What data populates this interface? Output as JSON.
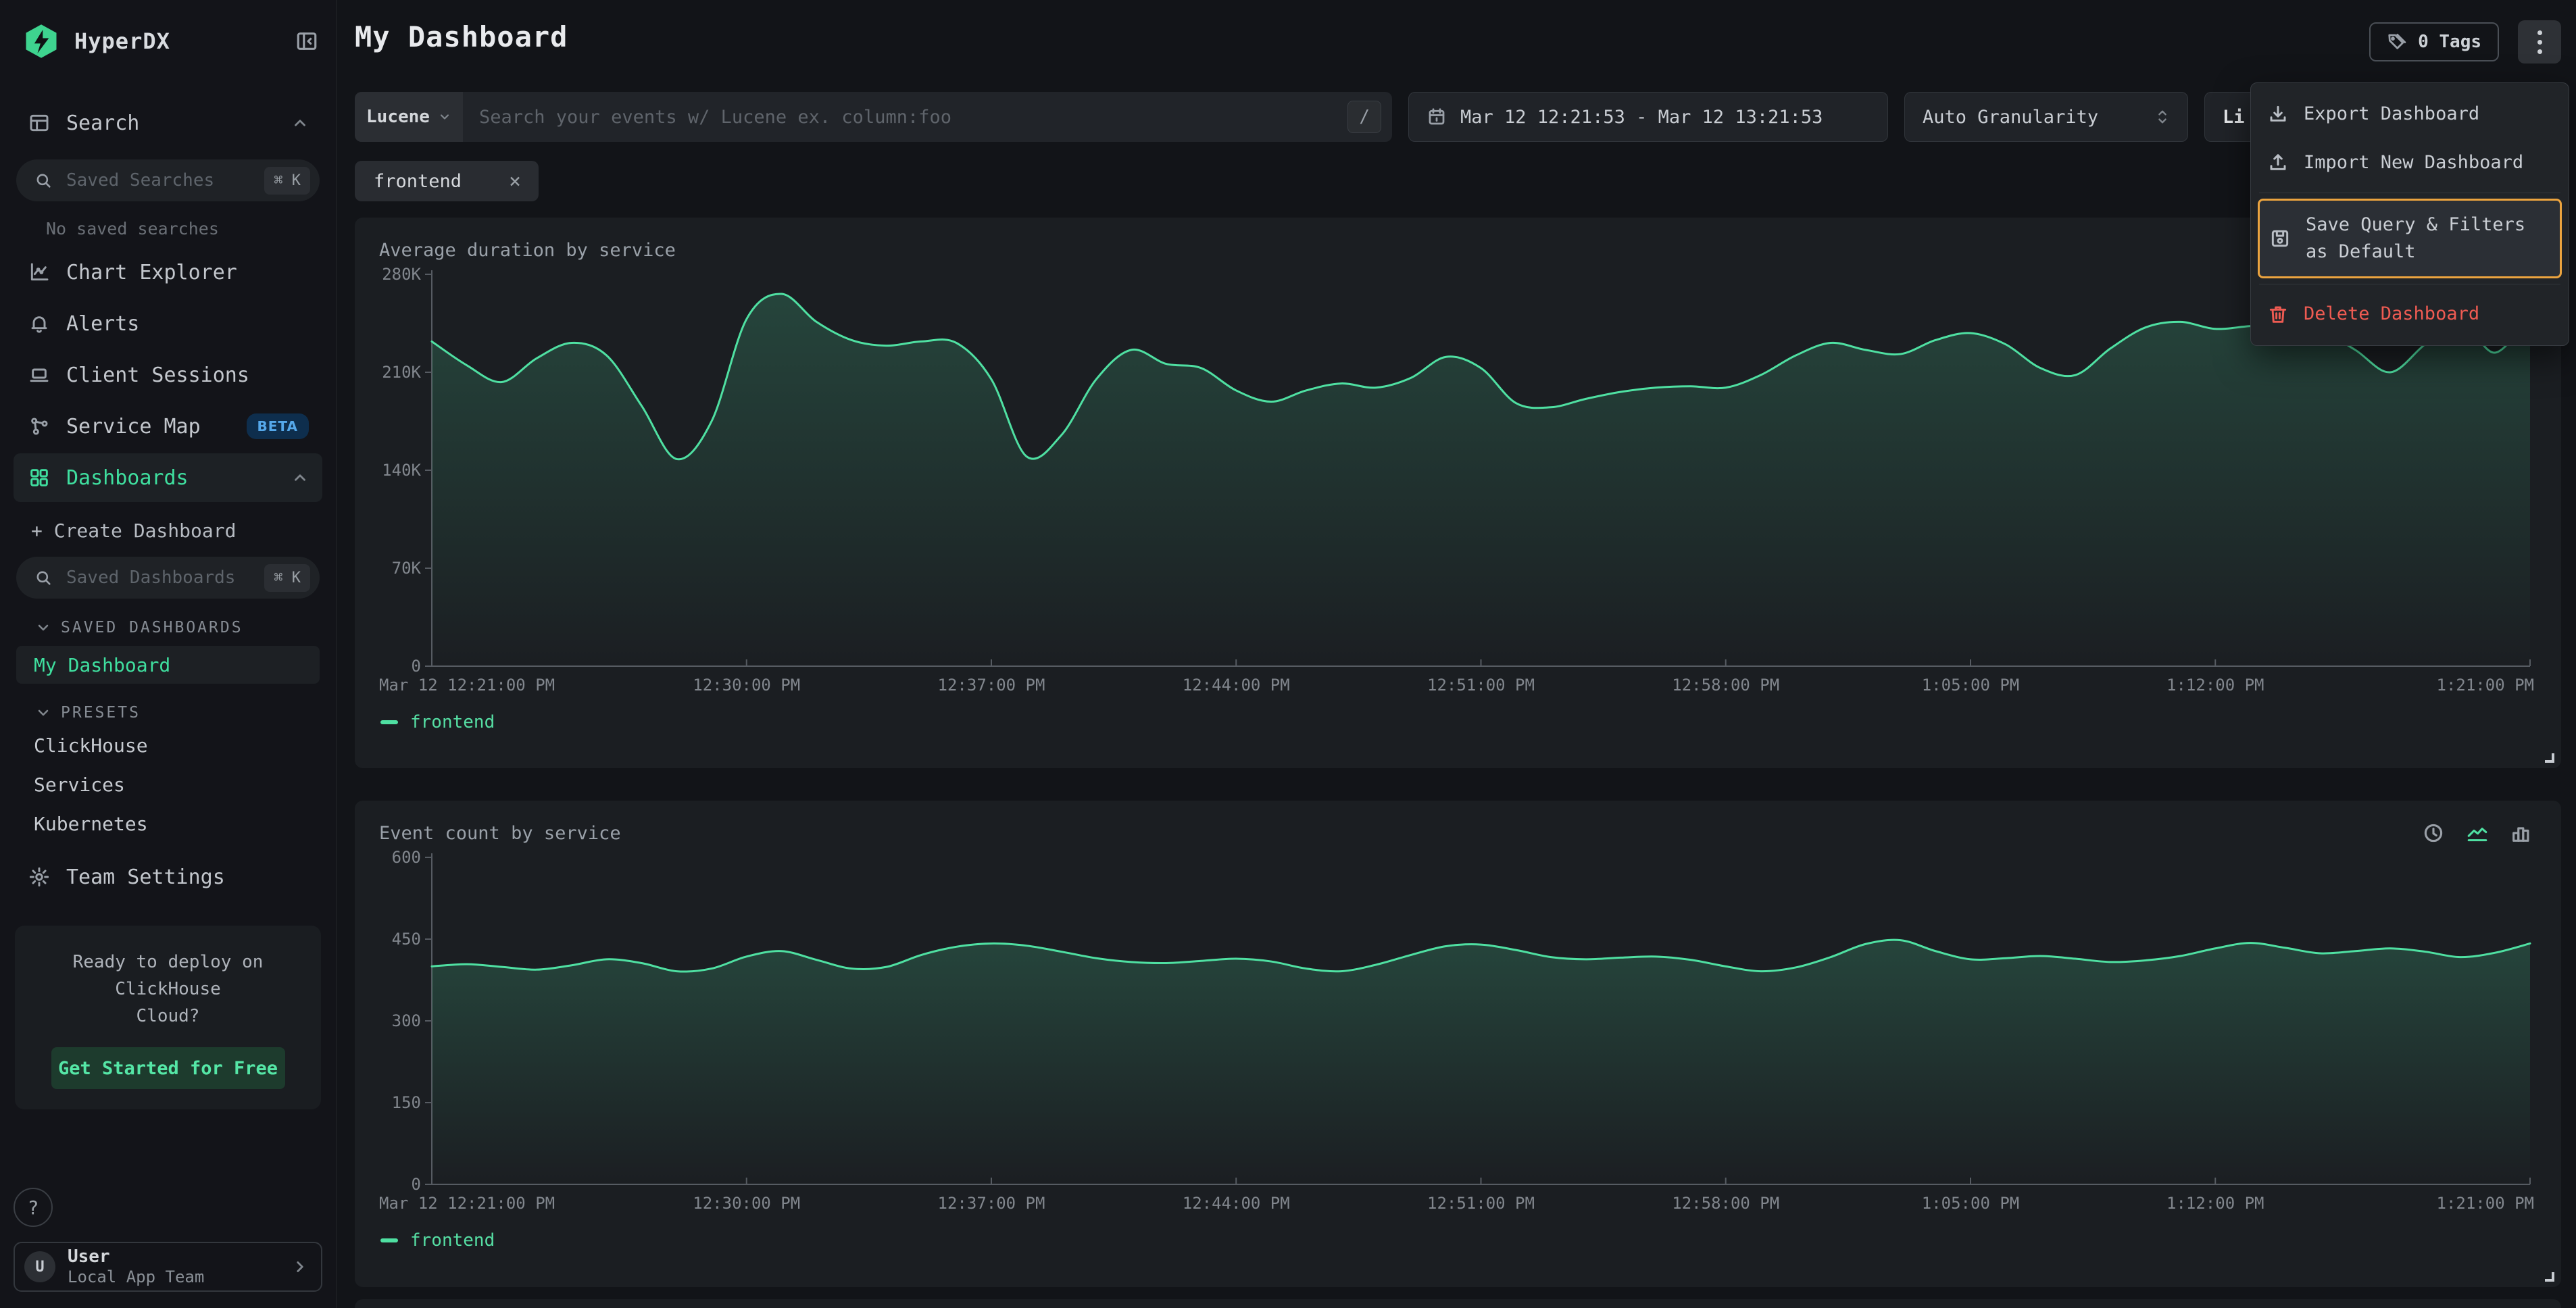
{
  "brand": {
    "name": "HyperDX"
  },
  "sidebar": {
    "search_nav": {
      "label": "Search"
    },
    "saved_searches_input": {
      "placeholder": "Saved Searches",
      "shortcut": "⌘ K"
    },
    "no_saved": "No saved searches",
    "nav": [
      {
        "label": "Chart Explorer"
      },
      {
        "label": "Alerts"
      },
      {
        "label": "Client Sessions"
      },
      {
        "label": "Service Map",
        "badge": "BETA"
      },
      {
        "label": "Dashboards"
      }
    ],
    "create_dashboard": "+ Create Dashboard",
    "saved_dashboards_input": {
      "placeholder": "Saved Dashboards",
      "shortcut": "⌘ K"
    },
    "sections": {
      "saved_dashboards": {
        "label": "SAVED DASHBOARDS",
        "items": [
          {
            "label": "My Dashboard"
          }
        ]
      },
      "presets": {
        "label": "PRESETS",
        "items": [
          {
            "label": "ClickHouse"
          },
          {
            "label": "Services"
          },
          {
            "label": "Kubernetes"
          }
        ]
      }
    },
    "team_settings": {
      "label": "Team Settings"
    },
    "cloud_card": {
      "line1": "Ready to deploy on ClickHouse",
      "line2": "Cloud?",
      "cta": "Get Started for Free"
    },
    "help_label": "?",
    "user": {
      "avatar": "U",
      "name": "User",
      "team": "Local App Team"
    }
  },
  "header": {
    "title": "My Dashboard",
    "tags_button": "0 Tags"
  },
  "controls": {
    "language_select": "Lucene",
    "search_placeholder": "Search your events w/ Lucene ex. column:foo",
    "slash_key": "/",
    "date_range": "Mar 12 12:21:53 - Mar 12 13:21:53",
    "granularity": "Auto Granularity",
    "live_button": "Li",
    "filter_chip": "frontend",
    "chip_close": "×"
  },
  "menu": {
    "items": [
      {
        "label": "Export Dashboard"
      },
      {
        "label": "Import New Dashboard"
      },
      {
        "label": "Save Query & Filters as Default"
      },
      {
        "label": "Delete Dashboard"
      }
    ]
  },
  "colors": {
    "accent_green": "#4fe0a2",
    "highlight_orange": "#eca43f",
    "danger_red": "#ee5b52",
    "beta_blue": "#55a8ea",
    "panel_bg": "#1b1e22"
  },
  "chart_data": [
    {
      "type": "line",
      "title": "Average duration by service",
      "unit_note": "y values are thousands (K)",
      "ymax": 280,
      "ylim": [
        0,
        280
      ],
      "y_ticks": [
        "280K",
        "210K",
        "140K",
        "70K",
        "0"
      ],
      "span_min": 60,
      "x_ticks": [
        {
          "label": "Mar 12 12:21:00 PM",
          "min": 0
        },
        {
          "label": "12:30:00 PM",
          "min": 9
        },
        {
          "label": "12:37:00 PM",
          "min": 16
        },
        {
          "label": "12:44:00 PM",
          "min": 23
        },
        {
          "label": "12:51:00 PM",
          "min": 30
        },
        {
          "label": "12:58:00 PM",
          "min": 37
        },
        {
          "label": "1:05:00 PM",
          "min": 44
        },
        {
          "label": "1:12:00 PM",
          "min": 51
        },
        {
          "label": "1:21:00 PM",
          "min": 60
        }
      ],
      "line_color": "#4fe0a2",
      "legend_position": "bottom-left",
      "grid": false,
      "series": [
        {
          "name": "frontend",
          "values": [
            232,
            215,
            203,
            220,
            231,
            222,
            186,
            148,
            175,
            248,
            266,
            246,
            233,
            229,
            232,
            231,
            205,
            150,
            165,
            205,
            226,
            216,
            213,
            197,
            189,
            197,
            202,
            199,
            206,
            221,
            213,
            188,
            185,
            191,
            196,
            199,
            200,
            199,
            208,
            222,
            231,
            226,
            223,
            233,
            238,
            230,
            213,
            208,
            227,
            242,
            246,
            241,
            243,
            244,
            240,
            226,
            210,
            230,
            247,
            224,
            252
          ]
        }
      ]
    },
    {
      "type": "line",
      "title": "Event count by service",
      "ymax": 600,
      "ylim": [
        0,
        600
      ],
      "y_ticks": [
        "600",
        "450",
        "300",
        "150",
        "0"
      ],
      "span_min": 60,
      "x_ticks": [
        {
          "label": "Mar 12 12:21:00 PM",
          "min": 0
        },
        {
          "label": "12:30:00 PM",
          "min": 9
        },
        {
          "label": "12:37:00 PM",
          "min": 16
        },
        {
          "label": "12:44:00 PM",
          "min": 23
        },
        {
          "label": "12:51:00 PM",
          "min": 30
        },
        {
          "label": "12:58:00 PM",
          "min": 37
        },
        {
          "label": "1:05:00 PM",
          "min": 44
        },
        {
          "label": "1:12:00 PM",
          "min": 51
        },
        {
          "label": "1:21:00 PM",
          "min": 60
        }
      ],
      "line_color": "#4fe0a2",
      "legend_position": "bottom-left",
      "grid": false,
      "series": [
        {
          "name": "frontend",
          "values": [
            400,
            404,
            399,
            394,
            402,
            413,
            406,
            391,
            396,
            418,
            428,
            412,
            396,
            399,
            421,
            436,
            442,
            438,
            427,
            415,
            408,
            406,
            410,
            414,
            409,
            396,
            391,
            403,
            421,
            437,
            440,
            430,
            417,
            413,
            416,
            418,
            412,
            400,
            391,
            398,
            417,
            441,
            448,
            428,
            413,
            415,
            419,
            414,
            408,
            411,
            419,
            433,
            443,
            434,
            424,
            428,
            433,
            427,
            417,
            425,
            442
          ]
        }
      ]
    }
  ]
}
